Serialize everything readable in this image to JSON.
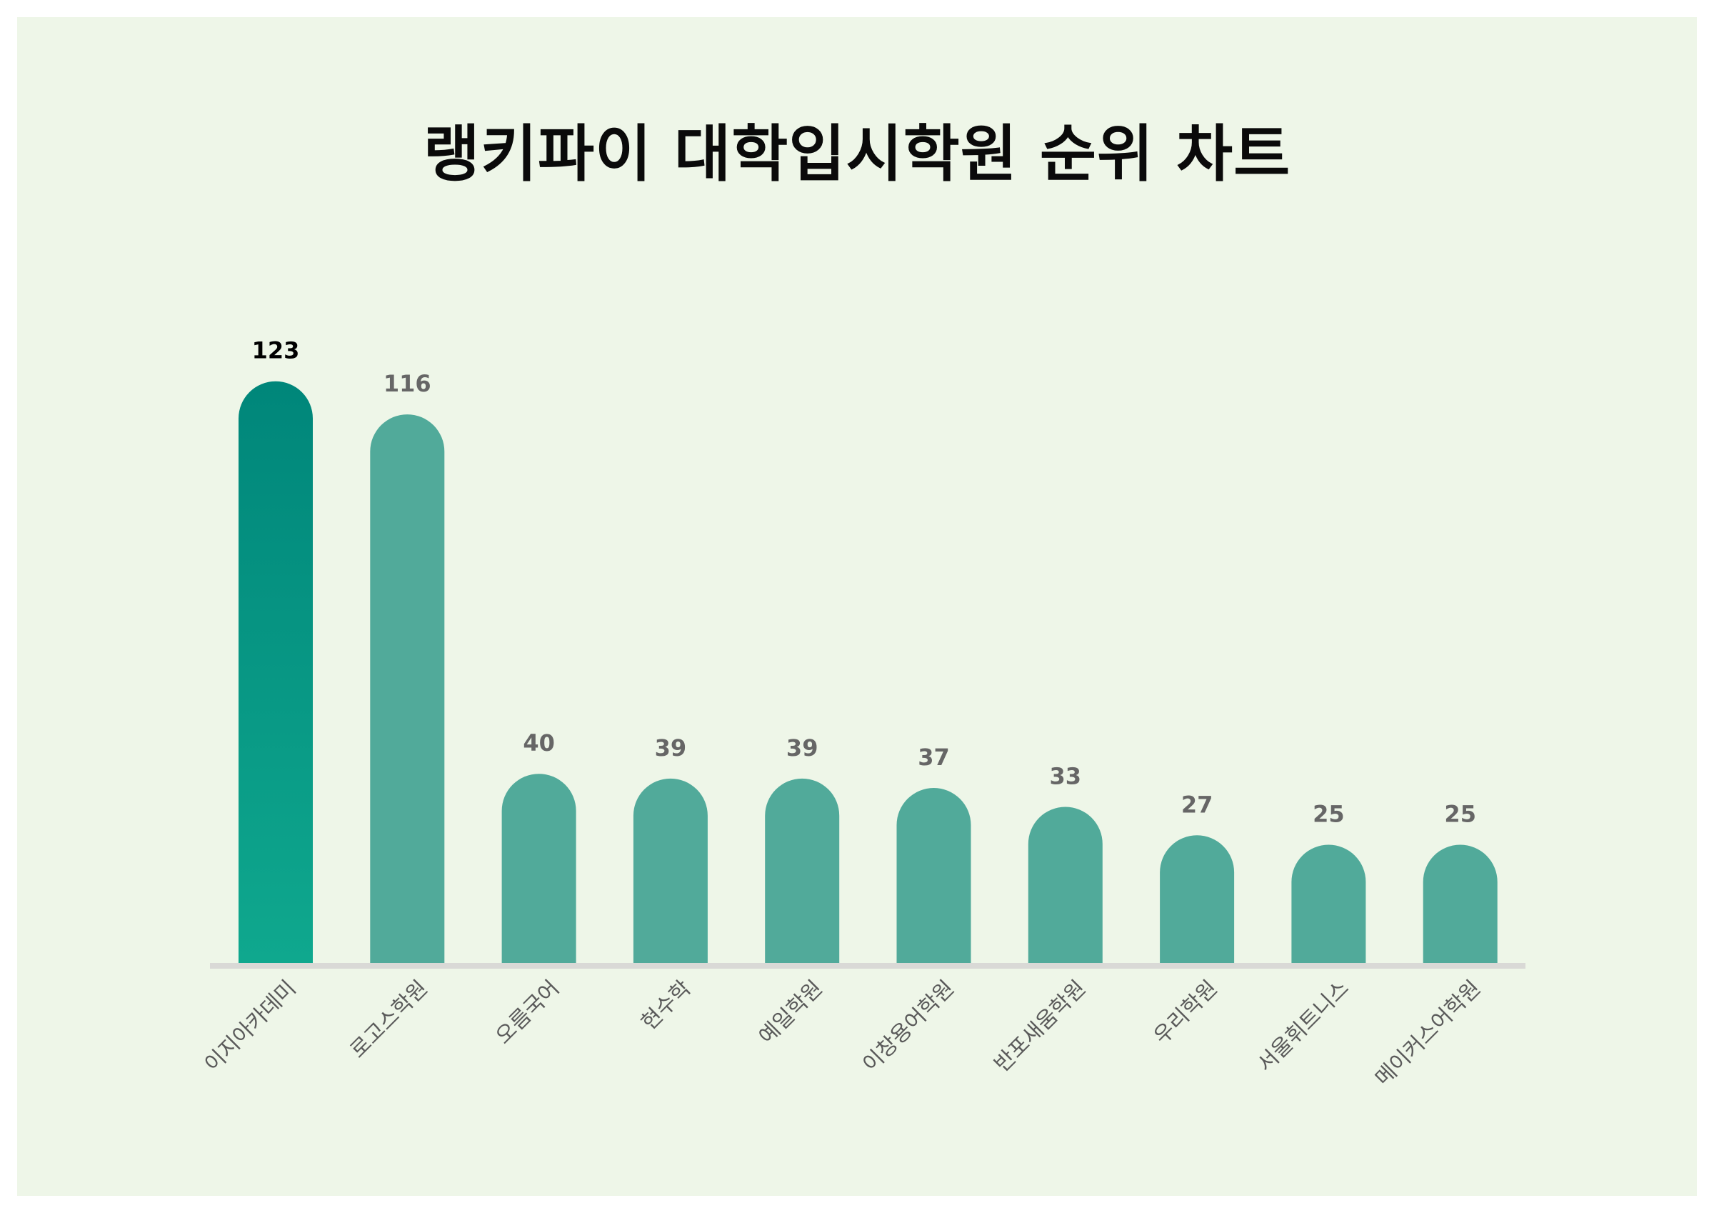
{
  "chart_data": {
    "type": "bar",
    "title": "랭키파이 대학입시학원 순위 차트",
    "categories": [
      "이지아카데미",
      "로고스학원",
      "오름국어",
      "현수학",
      "예일학원",
      "이창용어학원",
      "반포새움학원",
      "우리학원",
      "서울휘트니스",
      "메이커스어학원"
    ],
    "values": [
      123,
      116,
      40,
      39,
      39,
      37,
      33,
      27,
      25,
      25
    ],
    "xlabel": "",
    "ylabel": "",
    "grid": false,
    "legend": "none",
    "colors": {
      "highlight_top": "#00867a",
      "highlight_bottom": "#0fa88e",
      "bar": "#51aa9a",
      "baseline": "#d9d9d6",
      "label_top": "#000000",
      "label": "#666666",
      "category": "#5a5a5a",
      "background": "#eef6e8"
    }
  }
}
